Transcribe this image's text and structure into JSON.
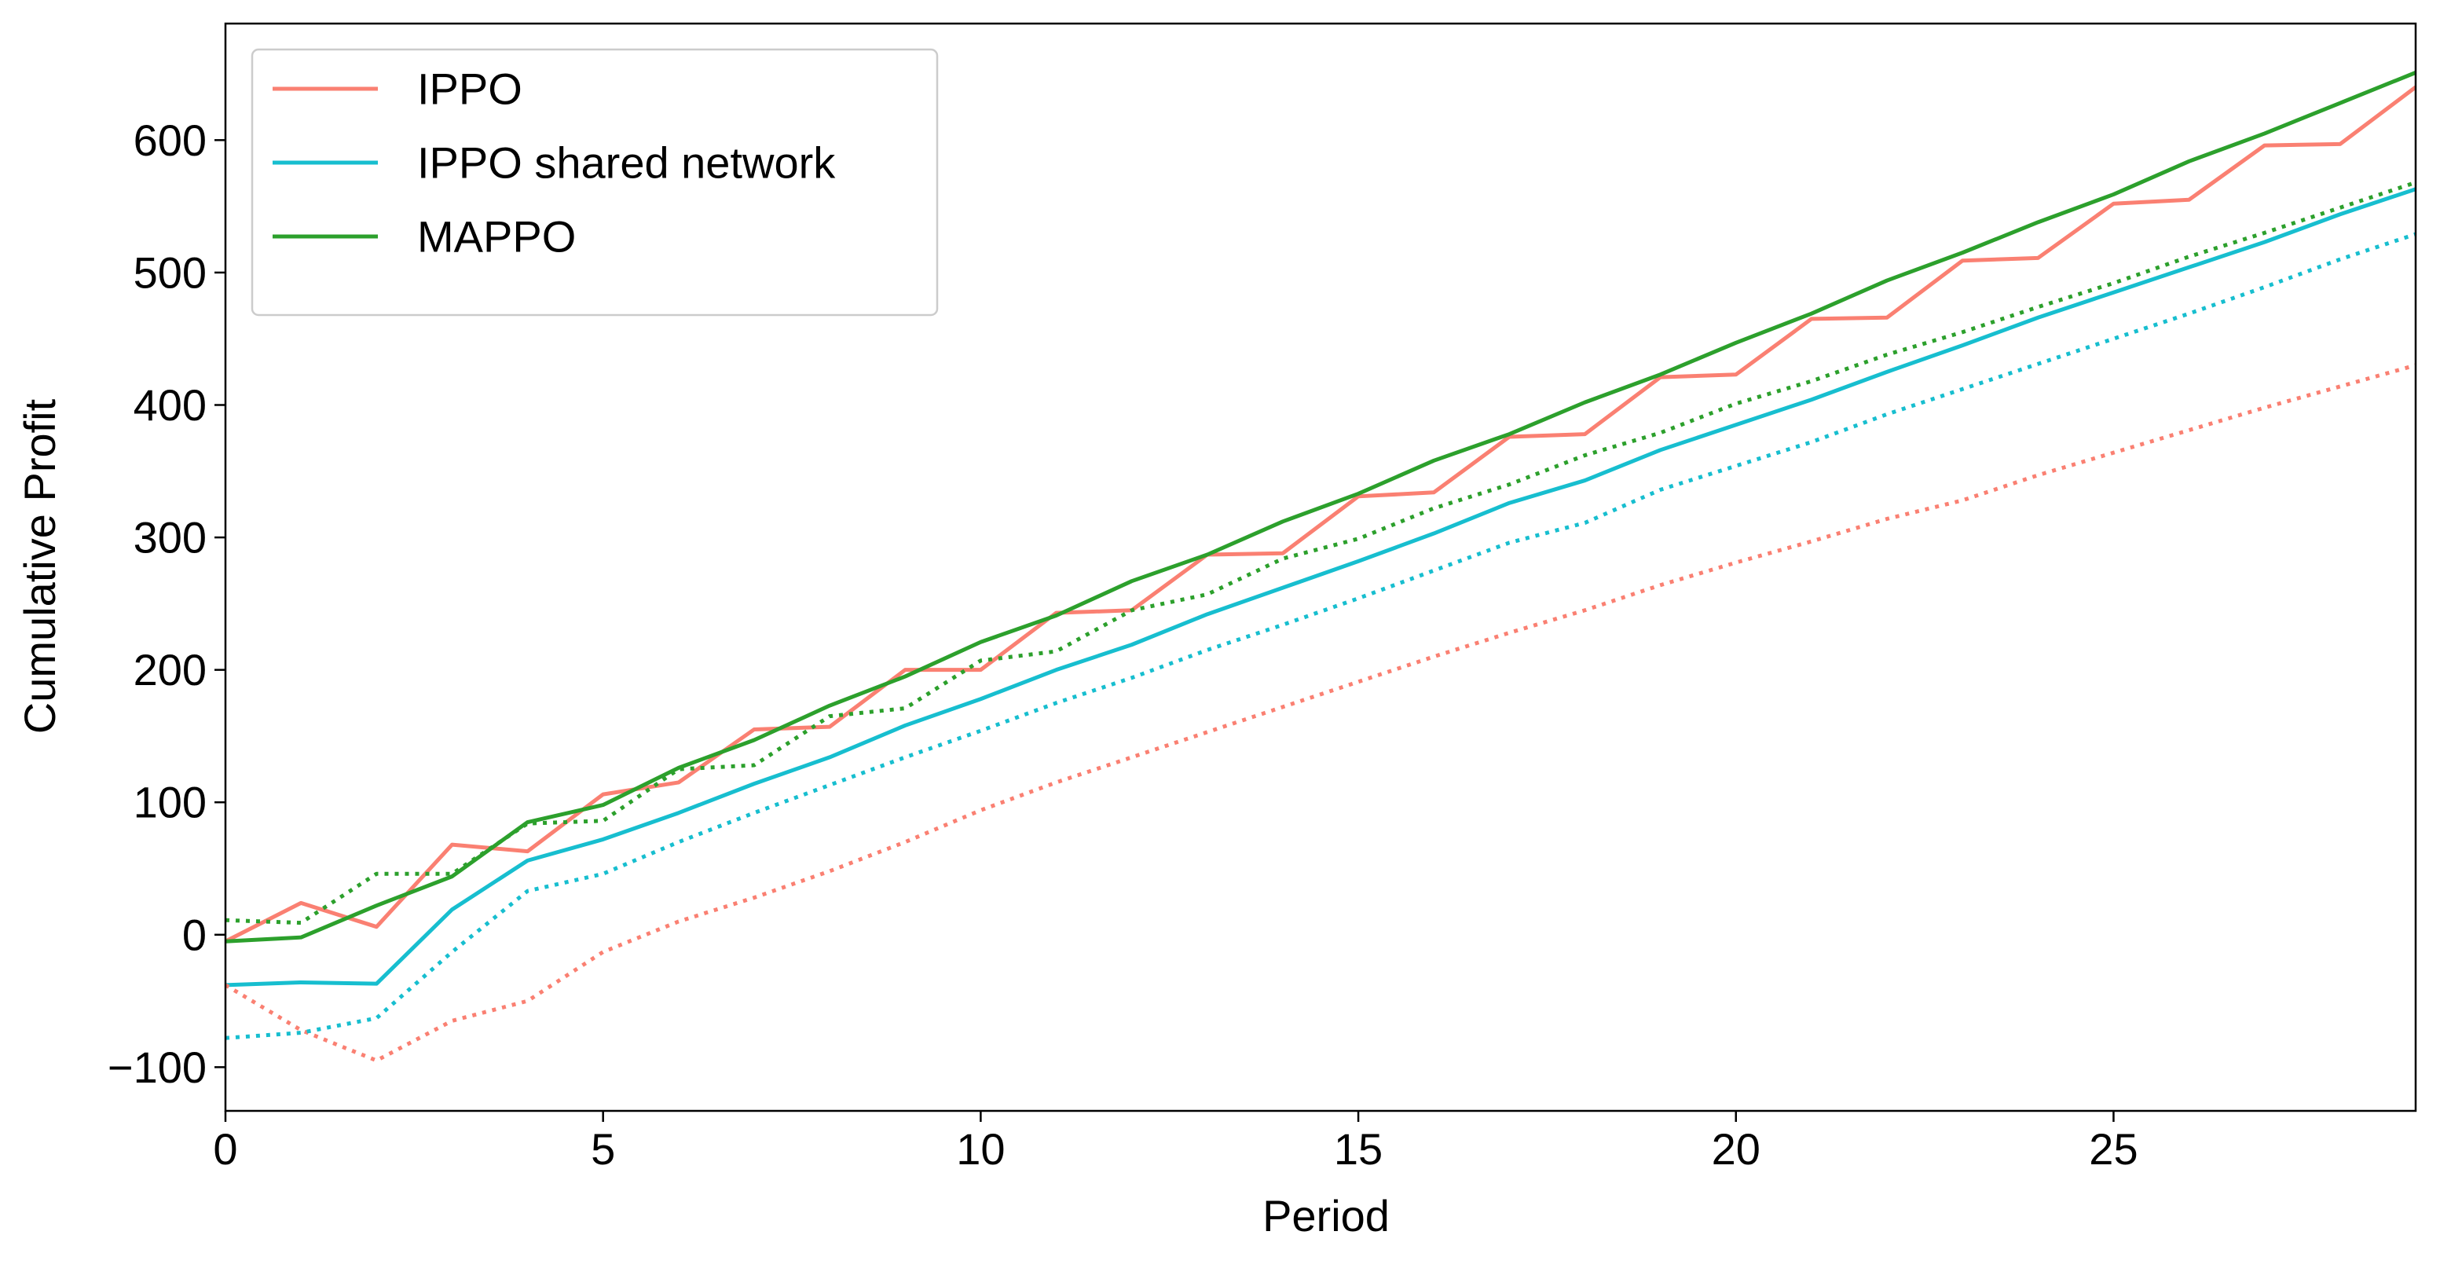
{
  "chart_data": {
    "type": "line",
    "x_label": "Period",
    "y_label": "Cumulative Profit",
    "x": [
      0,
      1,
      2,
      3,
      4,
      5,
      6,
      7,
      8,
      9,
      10,
      11,
      12,
      13,
      14,
      15,
      16,
      17,
      18,
      19,
      20,
      21,
      22,
      23,
      24,
      25,
      26,
      27,
      28,
      29
    ],
    "series": [
      {
        "name": "IPPO",
        "color": "#fa8072",
        "style": "solid",
        "values": [
          -5,
          24,
          6,
          68,
          63,
          106,
          115,
          155,
          157,
          200,
          200,
          243,
          245,
          287,
          288,
          331,
          334,
          376,
          378,
          421,
          423,
          465,
          466,
          509,
          511,
          552,
          555,
          596,
          597,
          640
        ]
      },
      {
        "name": "IPPO shared network",
        "color": "#17becf",
        "style": "solid",
        "values": [
          -38,
          -36,
          -37,
          19,
          56,
          72,
          92,
          114,
          134,
          158,
          178,
          200,
          219,
          242,
          262,
          282,
          303,
          326,
          343,
          366,
          385,
          404,
          425,
          445,
          466,
          485,
          504,
          523,
          544,
          563
        ]
      },
      {
        "name": "MAPPO",
        "color": "#2ca02c",
        "style": "solid",
        "values": [
          -5,
          -2,
          22,
          44,
          85,
          98,
          126,
          147,
          173,
          195,
          221,
          241,
          267,
          287,
          312,
          333,
          358,
          378,
          402,
          423,
          447,
          469,
          494,
          515,
          538,
          559,
          584,
          605,
          628,
          651
        ]
      },
      {
        "color": "#fa8072",
        "style": "dotted",
        "values": [
          -38,
          -72,
          -95,
          -65,
          -50,
          -13,
          10,
          28,
          48,
          70,
          94,
          115,
          134,
          153,
          172,
          191,
          210,
          228,
          245,
          264,
          281,
          297,
          314,
          328,
          347,
          364,
          381,
          398,
          414,
          430
        ]
      },
      {
        "color": "#17becf",
        "style": "dotted",
        "values": [
          -78,
          -74,
          -63,
          -13,
          33,
          46,
          70,
          92,
          113,
          134,
          154,
          175,
          194,
          215,
          234,
          254,
          275,
          296,
          311,
          336,
          354,
          372,
          393,
          412,
          431,
          450,
          469,
          489,
          510,
          529
        ]
      },
      {
        "color": "#2ca02c",
        "style": "dotted",
        "values": [
          11,
          9,
          46,
          46,
          84,
          86,
          125,
          128,
          165,
          171,
          207,
          214,
          245,
          257,
          284,
          299,
          322,
          340,
          362,
          379,
          401,
          418,
          438,
          455,
          474,
          492,
          512,
          530,
          549,
          568
        ]
      }
    ],
    "xlim": [
      0,
      29
    ],
    "xticks": [
      0,
      5,
      10,
      15,
      20,
      25
    ],
    "ylim": [
      -133,
      688
    ],
    "yticks": [
      {
        "value": -100,
        "label": "−100"
      },
      0,
      100,
      200,
      300,
      400,
      500,
      600
    ],
    "legend": "upper left"
  }
}
